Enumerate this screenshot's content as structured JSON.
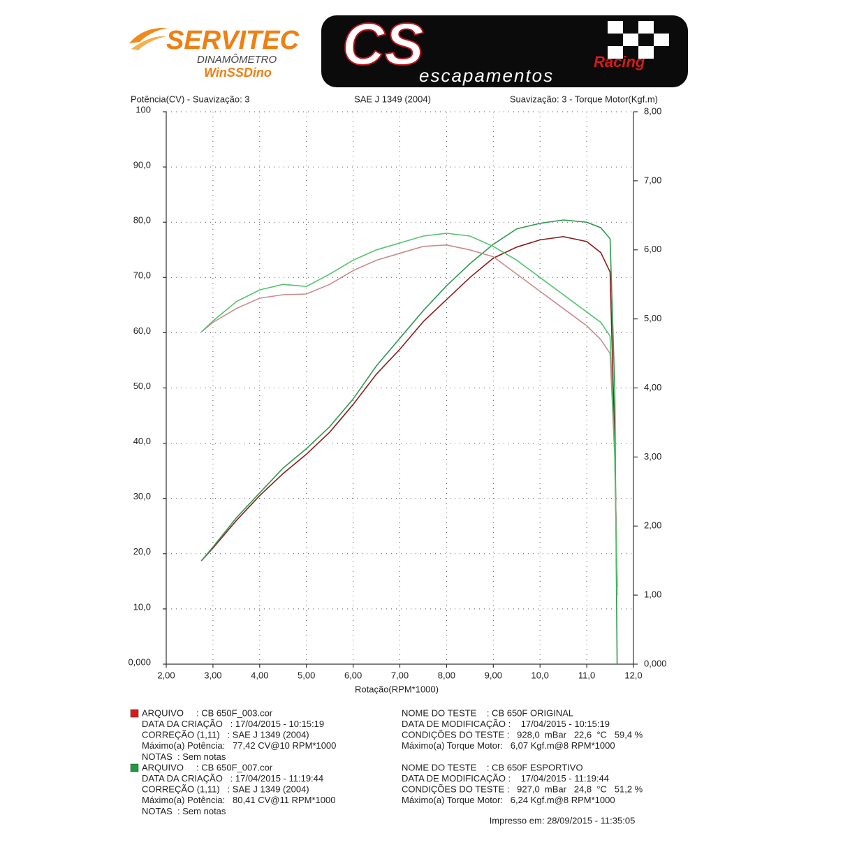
{
  "header": {
    "brand": "SERVITEC",
    "brand_sub": "DINAMÔMETRO",
    "software": "WinSSDino",
    "sponsor": "CS",
    "sponsor_tag": "Racing",
    "sponsor_sub": "escapamentos"
  },
  "chart_data": {
    "type": "line",
    "left_label": "Potência(CV) - Suavização: 3",
    "center_label": "SAE J 1349 (2004)",
    "right_label": "Suavização: 3 - Torque Motor(Kgf.m)",
    "x_label": "Rotação(RPM*1000)",
    "x": [
      2.75,
      3.0,
      3.5,
      4.0,
      4.5,
      5.0,
      5.5,
      6.0,
      6.5,
      7.0,
      7.5,
      8.0,
      8.5,
      9.0,
      9.5,
      10.0,
      10.5,
      11.0,
      11.3,
      11.5,
      11.6,
      11.65
    ],
    "series": [
      {
        "color": "#8b1e1e",
        "values": [
          18.7,
          21,
          26,
          30.5,
          34.5,
          38,
          42,
          47,
          52.5,
          57,
          62,
          66,
          70,
          73.5,
          75.5,
          76.8,
          77.4,
          76.5,
          74.5,
          71,
          40,
          14
        ]
      },
      {
        "color": "#2f9a50",
        "values": [
          18.7,
          21.2,
          26.5,
          31,
          35.5,
          39,
          43,
          48,
          54,
          59,
          64,
          68.5,
          72.5,
          76,
          78.8,
          79.8,
          80.4,
          80,
          79,
          77,
          50,
          0
        ]
      },
      {
        "color": "#c98c8c",
        "axis": "y2",
        "values": [
          4.81,
          4.95,
          5.15,
          5.3,
          5.35,
          5.36,
          5.5,
          5.7,
          5.85,
          5.95,
          6.05,
          6.07,
          6.0,
          5.9,
          5.65,
          5.4,
          5.15,
          4.9,
          4.7,
          4.5,
          3.0,
          1.2
        ]
      },
      {
        "color": "#52c46e",
        "axis": "y2",
        "values": [
          4.81,
          4.97,
          5.25,
          5.42,
          5.5,
          5.47,
          5.65,
          5.85,
          6.0,
          6.1,
          6.2,
          6.24,
          6.2,
          6.05,
          5.85,
          5.6,
          5.35,
          5.1,
          4.95,
          4.75,
          3.0,
          1.0
        ]
      }
    ],
    "xlim": [
      2,
      12
    ],
    "xticks": [
      {
        "value": 2,
        "label": "2,00"
      },
      {
        "value": 3,
        "label": "3,00"
      },
      {
        "value": 4,
        "label": "4,00"
      },
      {
        "value": 5,
        "label": "5,00"
      },
      {
        "value": 6,
        "label": "6,00"
      },
      {
        "value": 7,
        "label": "7,00"
      },
      {
        "value": 8,
        "label": "8,00"
      },
      {
        "value": 9,
        "label": "9,00"
      },
      {
        "value": 10,
        "label": "10,0"
      },
      {
        "value": 11,
        "label": "11,0"
      },
      {
        "value": 12,
        "label": "12,0"
      }
    ],
    "ylim": [
      0,
      100
    ],
    "yticks": [
      {
        "value": 0,
        "label": "0,000"
      },
      {
        "value": 10,
        "label": "10,0"
      },
      {
        "value": 20,
        "label": "20,0"
      },
      {
        "value": 30,
        "label": "30,0"
      },
      {
        "value": 40,
        "label": "40,0"
      },
      {
        "value": 50,
        "label": "50,0"
      },
      {
        "value": 60,
        "label": "60,0"
      },
      {
        "value": 70,
        "label": "70,0"
      },
      {
        "value": 80,
        "label": "80,0"
      },
      {
        "value": 90,
        "label": "90,0"
      },
      100
    ],
    "y2lim": [
      0,
      8
    ],
    "y2ticks": [
      {
        "value": 0,
        "label": "0,000"
      },
      {
        "value": 1,
        "label": "1,00"
      },
      {
        "value": 2,
        "label": "2,00"
      },
      {
        "value": 3,
        "label": "3,00"
      },
      {
        "value": 4,
        "label": "4,00"
      },
      {
        "value": 5,
        "label": "5,00"
      },
      {
        "value": 6,
        "label": "6,00"
      },
      {
        "value": 7,
        "label": "7,00"
      },
      {
        "value": 8,
        "label": "8,00"
      }
    ],
    "grid": true
  },
  "tests": [
    {
      "color": "#d81b1b",
      "left": [
        "ARQUIVO     : CB 650F_003.cor",
        "DATA DA CRIAÇÃO   : 17/04/2015 - 10:15:19",
        "CORREÇÃO (1,11)   : SAE J 1349 (2004)",
        "Máximo(a) Potência:   77,42 CV@10 RPM*1000",
        "NOTAS  : Sem notas"
      ],
      "right": [
        "NOME DO TESTE    : CB 650F ORIGINAL",
        "DATA DE MODIFICAÇÃO :    17/04/2015 - 10:15:19",
        "CONDIÇÕES DO TESTE :   928,0  mBar   22,6  °C   59,4 %",
        "Máximo(a) Torque Motor:   6,07 Kgf.m@8 RPM*1000"
      ]
    },
    {
      "color": "#1f9a3f",
      "left": [
        "ARQUIVO     : CB 650F_007.cor",
        "DATA DA CRIAÇÃO   : 17/04/2015 - 11:19:44",
        "CORREÇÃO (1,11)   : SAE J 1349 (2004)",
        "Máximo(a) Potência:   80,41 CV@11 RPM*1000",
        "NOTAS  : Sem notas"
      ],
      "right": [
        "NOME DO TESTE    : CB 650F ESPORTIVO",
        "DATA DE MODIFICAÇÃO :    17/04/2015 - 11:19:44",
        "CONDIÇÕES DO TESTE :   927,0  mBar   24,8  °C   51,2 %",
        "Máximo(a) Torque Motor:   6,24 Kgf.m@8 RPM*1000"
      ]
    }
  ],
  "footer": "Impresso em: 28/09/2015 - 11:35:05"
}
